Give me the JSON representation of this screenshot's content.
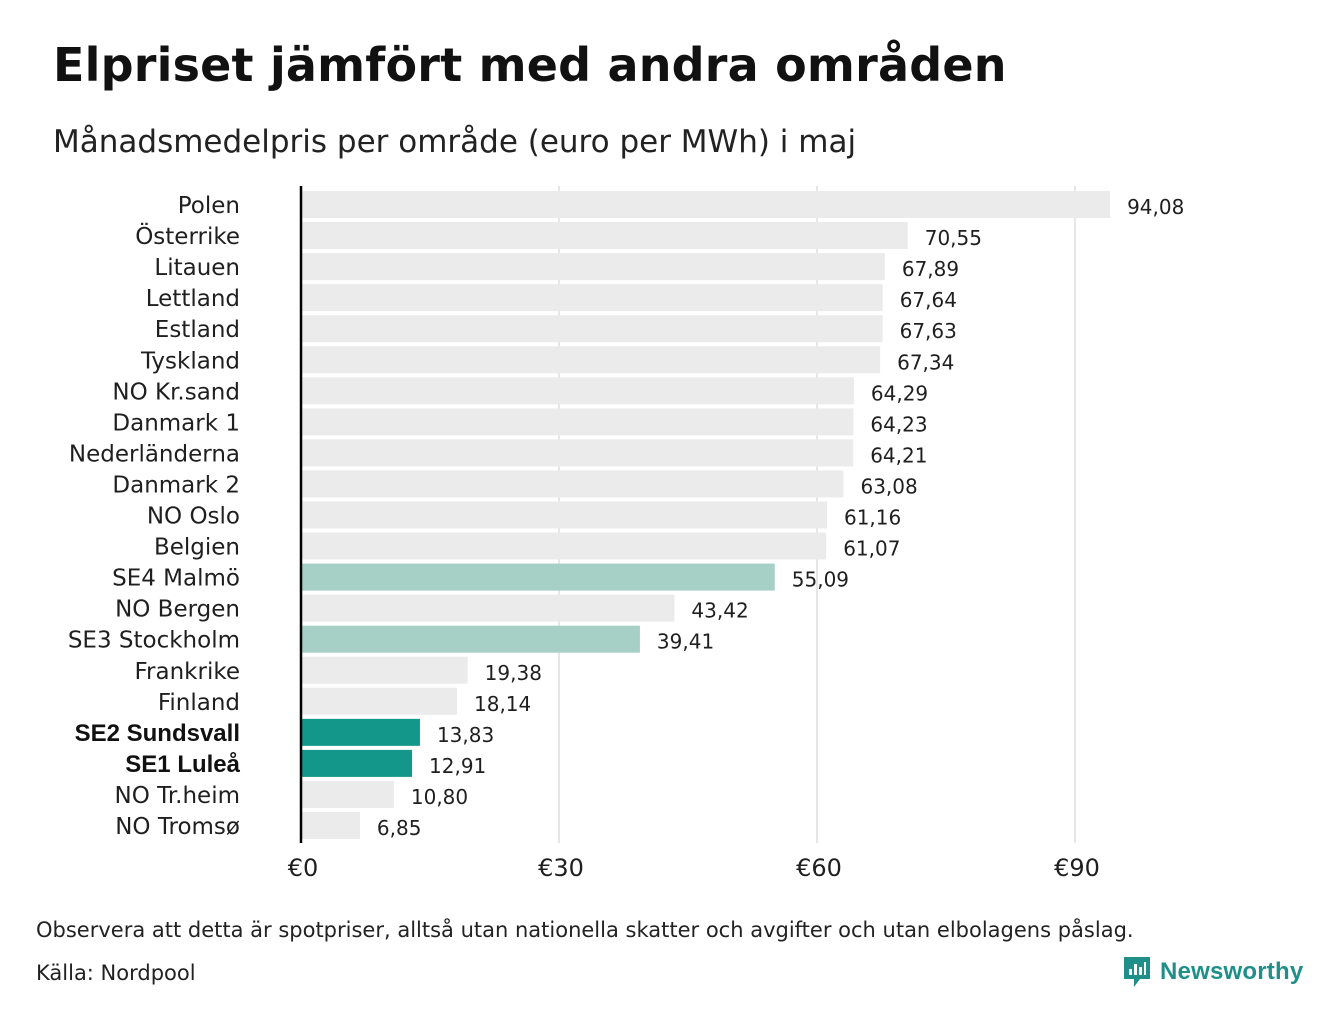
{
  "title": "Elpriset jämfört med andra områden",
  "subtitle": "Månadsmedelpris per område (euro per MWh) i maj",
  "note": "Observera att detta är spotpriser, alltså utan nationella skatter och avgifter och utan elbolagens påslag.",
  "source": "Källa: Nordpool",
  "brand": {
    "name": "Newsworthy",
    "icon": "newsworthy-logo-icon",
    "color": "#1f8f8a"
  },
  "colors": {
    "default_bar": "#ebebeb",
    "light_highlight": "#a6cfc6",
    "dark_highlight": "#13978a",
    "grid": "#cccccc",
    "axis": "#000000"
  },
  "chart_data": {
    "type": "bar",
    "orientation": "horizontal",
    "categories": [
      "Polen",
      "Österrike",
      "Litauen",
      "Lettland",
      "Estland",
      "Tyskland",
      "NO Kr.sand",
      "Danmark  1",
      "Nederländerna",
      "Danmark  2",
      "NO Oslo",
      "Belgien",
      "SE4  Malmö",
      "NO Bergen",
      "SE3  Stockholm",
      "Frankrike",
      "Finland",
      "SE2 Sundsvall",
      "SE1 Luleå",
      "NO Tr.heim",
      "NO Tromsø"
    ],
    "values": [
      94.08,
      70.55,
      67.89,
      67.64,
      67.63,
      67.34,
      64.29,
      64.23,
      64.21,
      63.08,
      61.16,
      61.07,
      55.09,
      43.42,
      39.41,
      19.38,
      18.14,
      13.83,
      12.91,
      10.8,
      6.85
    ],
    "value_labels": [
      "94,08",
      "70,55",
      "67,89",
      "67,64",
      "67,63",
      "67,34",
      "64,29",
      "64,23",
      "64,21",
      "63,08",
      "61,16",
      "61,07",
      "55,09",
      "43,42",
      "39,41",
      "19,38",
      "18,14",
      "13,83",
      "12,91",
      "10,80",
      "6,85"
    ],
    "highlight": [
      "none",
      "none",
      "none",
      "none",
      "none",
      "none",
      "none",
      "none",
      "none",
      "none",
      "none",
      "none",
      "light",
      "none",
      "light",
      "none",
      "none",
      "dark",
      "dark",
      "none",
      "none"
    ],
    "bold_labels": [
      "SE2 Sundsvall",
      "SE1 Luleå"
    ],
    "xticks": [
      0,
      30,
      60,
      90
    ],
    "xtick_labels": [
      "€0",
      "€30",
      "€60",
      "€90"
    ],
    "xlim": [
      0,
      100
    ],
    "grid": "vertical",
    "legend": "none"
  }
}
